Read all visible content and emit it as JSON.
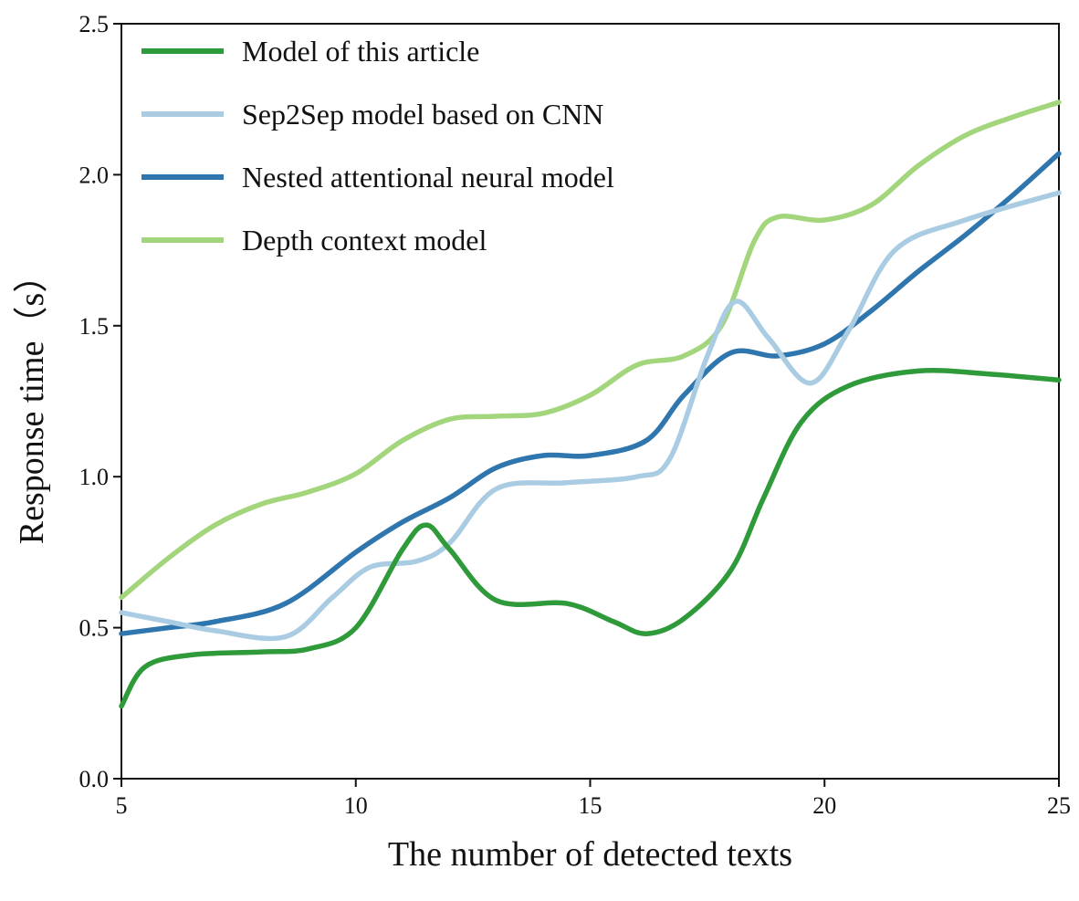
{
  "chart_data": {
    "type": "line",
    "title": "",
    "xlabel": "The number of detected texts",
    "ylabel": "Response time（s）",
    "xlim": [
      5,
      25
    ],
    "ylim": [
      0.0,
      2.5
    ],
    "xticks": [
      5,
      10,
      15,
      20,
      25
    ],
    "xtick_labels": [
      "5",
      "10",
      "15",
      "20",
      "25"
    ],
    "yticks": [
      0.0,
      0.5,
      1.0,
      1.5,
      2.0,
      2.5
    ],
    "ytick_labels": [
      "0.0",
      "0.5",
      "1.0",
      "1.5",
      "2.0",
      "2.5"
    ],
    "grid": false,
    "legend_position": "top-left",
    "series": [
      {
        "name": "Model of this article",
        "color": "#2f9a3a",
        "x": [
          5,
          5.5,
          6.5,
          8,
          9,
          10,
          11,
          11.5,
          12,
          13,
          14.5,
          15.5,
          16.2,
          17,
          18,
          18.7,
          19.5,
          20.5,
          22,
          23.5,
          25
        ],
        "y": [
          0.24,
          0.37,
          0.41,
          0.42,
          0.43,
          0.5,
          0.76,
          0.84,
          0.76,
          0.59,
          0.58,
          0.52,
          0.48,
          0.53,
          0.69,
          0.93,
          1.18,
          1.3,
          1.35,
          1.34,
          1.32
        ]
      },
      {
        "name": "Sep2Sep model based on CNN",
        "color": "#a9cce3",
        "x": [
          5,
          6,
          7,
          8.5,
          9.5,
          10.3,
          11.3,
          12,
          13,
          14.5,
          16,
          16.7,
          17.5,
          18.1,
          18.8,
          19.7,
          20.5,
          21.5,
          23,
          25
        ],
        "y": [
          0.55,
          0.52,
          0.49,
          0.47,
          0.6,
          0.7,
          0.72,
          0.78,
          0.96,
          0.98,
          1.0,
          1.06,
          1.4,
          1.58,
          1.46,
          1.31,
          1.48,
          1.75,
          1.85,
          1.94
        ]
      },
      {
        "name": "Nested attentional neural model",
        "color": "#2e76ad",
        "x": [
          5,
          6,
          7,
          8.5,
          10,
          11,
          12,
          13,
          14,
          15,
          16.2,
          17,
          18,
          19,
          20,
          21,
          22,
          23,
          24,
          25
        ],
        "y": [
          0.48,
          0.5,
          0.52,
          0.58,
          0.75,
          0.85,
          0.93,
          1.03,
          1.07,
          1.07,
          1.12,
          1.27,
          1.41,
          1.4,
          1.44,
          1.55,
          1.68,
          1.8,
          1.93,
          2.07
        ]
      },
      {
        "name": "Depth context model",
        "color": "#a3d67c",
        "x": [
          5,
          6,
          7,
          8,
          9,
          10,
          11,
          12,
          13,
          14,
          15,
          16,
          17,
          17.8,
          18.5,
          19,
          20,
          21,
          22,
          23,
          24,
          25
        ],
        "y": [
          0.6,
          0.73,
          0.84,
          0.91,
          0.95,
          1.01,
          1.12,
          1.19,
          1.2,
          1.21,
          1.27,
          1.37,
          1.4,
          1.5,
          1.78,
          1.86,
          1.85,
          1.9,
          2.03,
          2.13,
          2.19,
          2.24
        ]
      }
    ]
  }
}
